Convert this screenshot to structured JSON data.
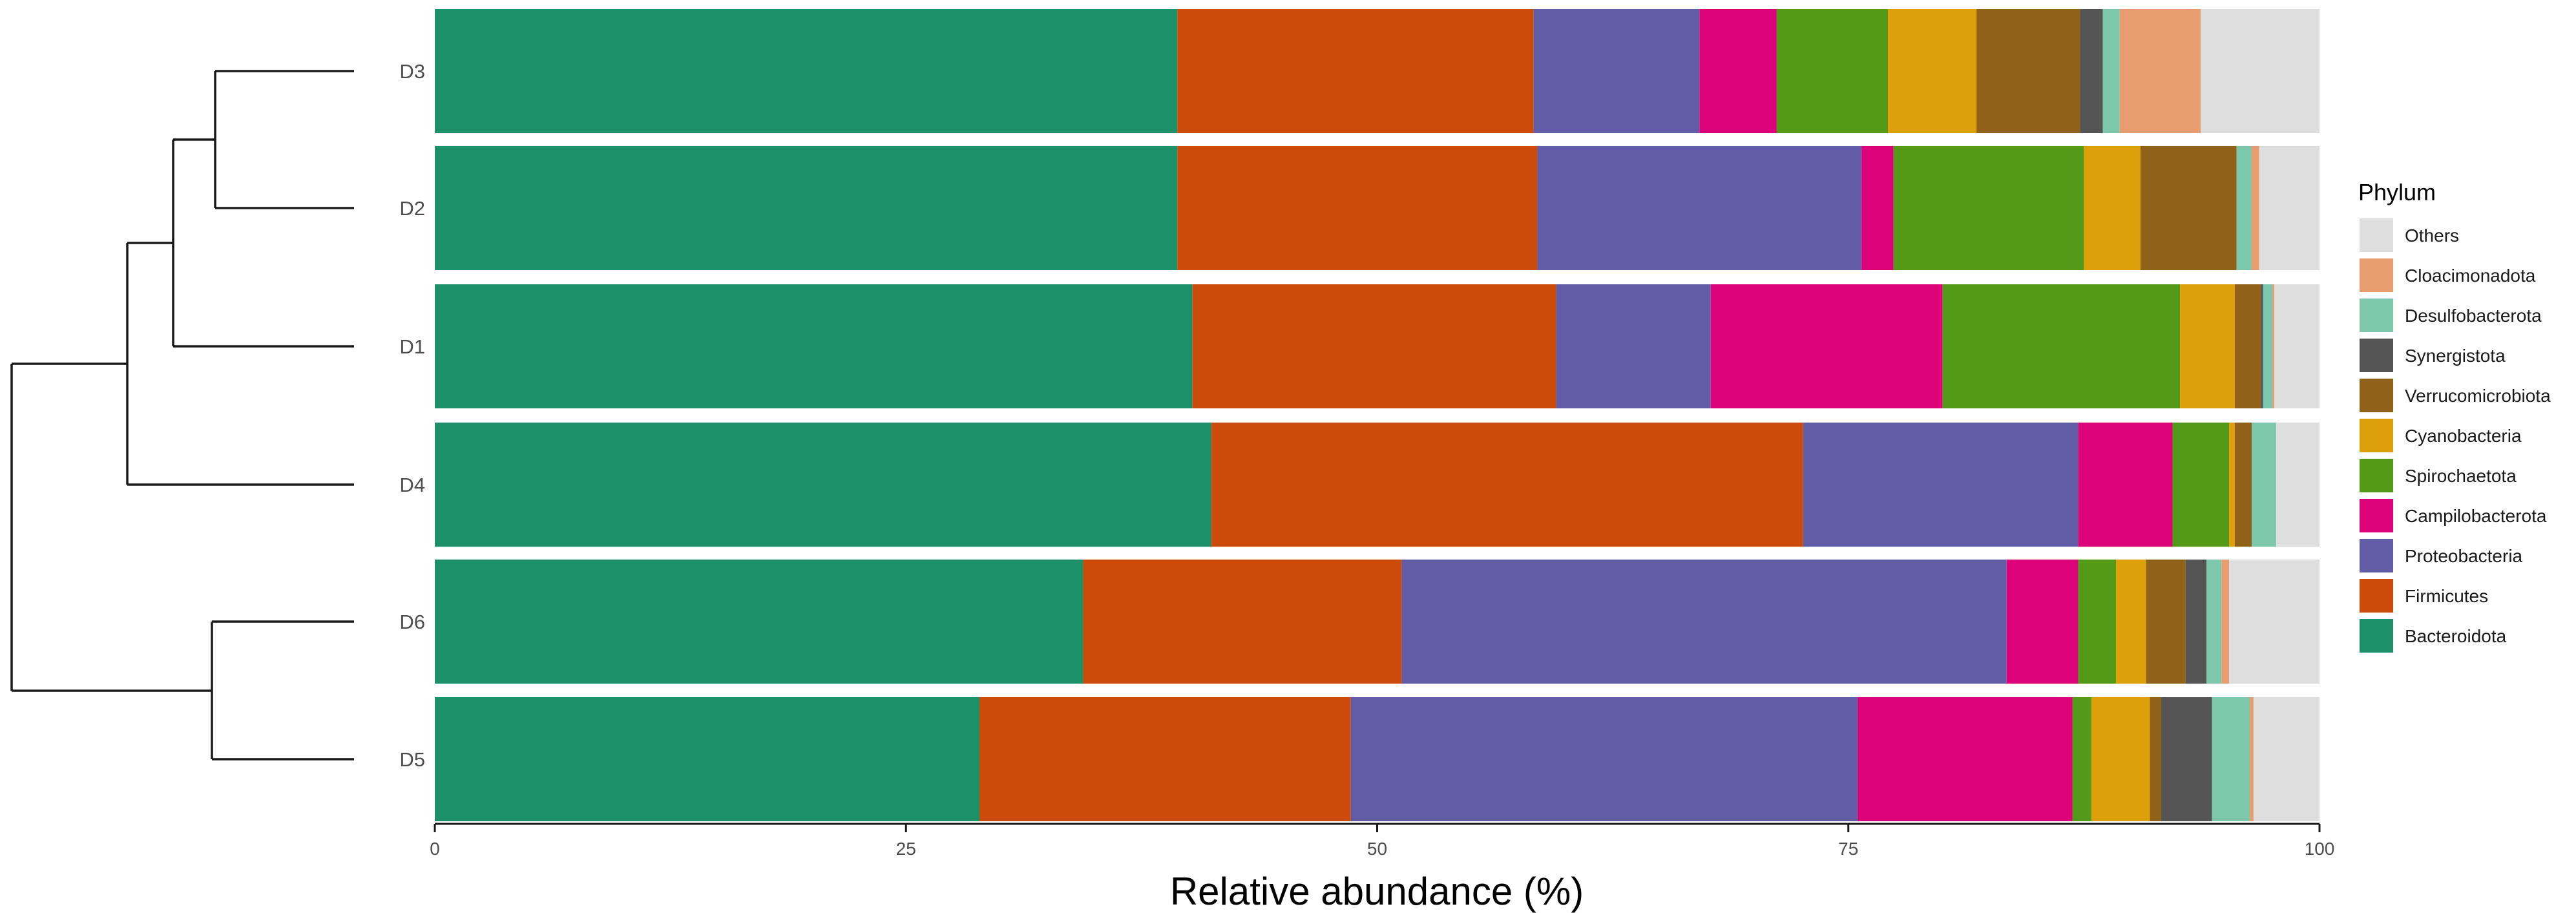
{
  "chart_data": {
    "type": "bar",
    "orientation": "horizontal",
    "stacked": true,
    "xlabel": "Relative abundance (%)",
    "xlim": [
      0,
      100
    ],
    "xticks": [
      "0",
      "25",
      "50",
      "75",
      "100"
    ],
    "grid": false,
    "legend": {
      "title": "Phylum",
      "placement": "right"
    },
    "categories": [
      "D3",
      "D2",
      "D1",
      "D4",
      "D6",
      "D5"
    ],
    "series": [
      {
        "name": "Bacteroidota",
        "color": "#1b9069",
        "values": [
          39.4,
          39.4,
          40.2,
          41.2,
          34.4,
          28.9
        ]
      },
      {
        "name": "Firmicutes",
        "color": "#cc4a0a",
        "values": [
          18.9,
          19.1,
          19.3,
          31.4,
          16.9,
          19.7
        ]
      },
      {
        "name": "Proteobacteria",
        "color": "#625ba6",
        "values": [
          8.8,
          17.2,
          8.2,
          14.6,
          32.1,
          26.9
        ]
      },
      {
        "name": "Campilobacterota",
        "color": "#dc0279",
        "values": [
          4.1,
          1.7,
          12.3,
          5.0,
          3.8,
          11.4
        ]
      },
      {
        "name": "Spirochaetota",
        "color": "#529a18",
        "values": [
          5.9,
          10.1,
          12.6,
          3.0,
          2.0,
          1.0
        ]
      },
      {
        "name": "Cyanobacteria",
        "color": "#dea00a",
        "values": [
          4.7,
          3.0,
          2.9,
          0.3,
          1.6,
          3.1
        ]
      },
      {
        "name": "Verrucomicrobiota",
        "color": "#8f6119",
        "values": [
          5.5,
          5.1,
          1.4,
          0.9,
          2.1,
          0.6
        ]
      },
      {
        "name": "Synergistota",
        "color": "#555555",
        "values": [
          1.2,
          0.0,
          0.1,
          0.0,
          1.1,
          2.7
        ]
      },
      {
        "name": "Desulfobacterota",
        "color": "#7dc7ad",
        "values": [
          0.9,
          0.8,
          0.5,
          1.3,
          0.8,
          2.0
        ]
      },
      {
        "name": "Cloacimonadota",
        "color": "#e79d6f",
        "values": [
          4.3,
          0.4,
          0.1,
          0.0,
          0.4,
          0.2
        ]
      },
      {
        "name": "Others",
        "color": "#dedede",
        "values": [
          6.3,
          3.2,
          2.4,
          2.3,
          4.8,
          3.5
        ]
      }
    ]
  },
  "legend_order": [
    "Others",
    "Cloacimonadota",
    "Desulfobacterota",
    "Synergistota",
    "Verrucomicrobiota",
    "Cyanobacteria",
    "Spirochaetota",
    "Campilobacterota",
    "Proteobacteria",
    "Firmicutes",
    "Bacteroidota"
  ]
}
